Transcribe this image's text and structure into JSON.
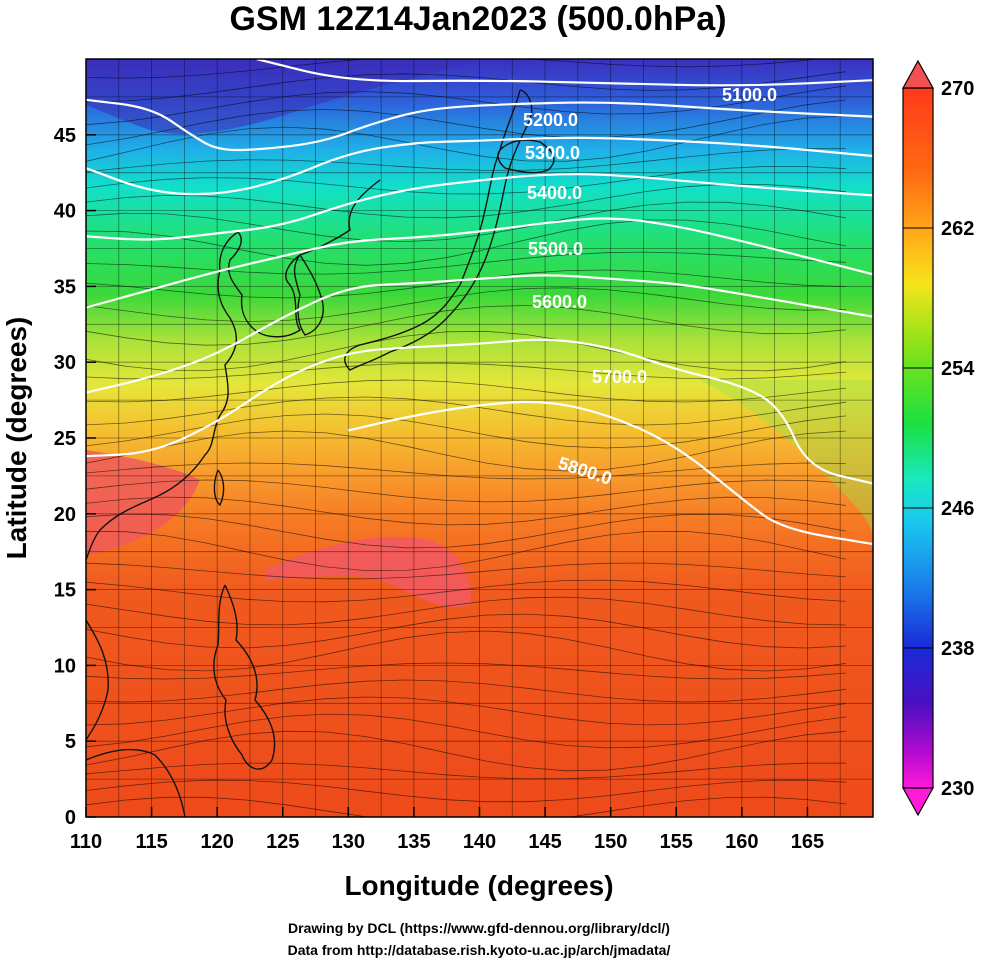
{
  "title": "GSM 12Z14Jan2023 (500.0hPa)",
  "xlabel": "Longitude (degrees)",
  "ylabel": "Latitude  (degrees)",
  "x_ticks": [
    "110",
    "115",
    "120",
    "125",
    "130",
    "135",
    "140",
    "145",
    "150",
    "155",
    "160",
    "165"
  ],
  "y_ticks": [
    "0",
    "5",
    "10",
    "15",
    "20",
    "25",
    "30",
    "35",
    "40",
    "45"
  ],
  "colorbar": {
    "ticks": [
      "270",
      "262",
      "254",
      "246",
      "238",
      "230"
    ],
    "min": 230,
    "max": 270
  },
  "contour_labels": [
    "5100.0",
    "5200.0",
    "5300.0",
    "5400.0",
    "5500.0",
    "5600.0",
    "5700.0",
    "5800.0"
  ],
  "credits": {
    "line1": "Drawing by DCL (https://www.gfd-dennou.org/library/dcl/)",
    "line2": "Data from http://database.rish.kyoto-u.ac.jp/arch/jmadata/"
  },
  "chart_data": {
    "type": "heatmap",
    "title": "GSM 12Z14Jan2023 (500.0hPa)",
    "xlabel": "Longitude (degrees)",
    "ylabel": "Latitude  (degrees)",
    "xlim": [
      110,
      170
    ],
    "ylim": [
      0,
      50
    ],
    "colorbar_range": [
      230,
      270
    ],
    "contours": [
      {
        "level": 5100.0,
        "points": [
          [
            123,
            50
          ],
          [
            130,
            48.5
          ],
          [
            140,
            48.6
          ],
          [
            150,
            48.4
          ],
          [
            160,
            48.2
          ],
          [
            170,
            48.6
          ]
        ]
      },
      {
        "level": 5200.0,
        "points": [
          [
            110,
            47.3
          ],
          [
            115,
            46.8
          ],
          [
            118,
            45
          ],
          [
            120,
            44
          ],
          [
            123,
            44
          ],
          [
            128,
            44.5
          ],
          [
            132,
            45.8
          ],
          [
            136,
            46.7
          ],
          [
            141,
            47
          ],
          [
            150,
            47.2
          ],
          [
            160,
            46.6
          ],
          [
            170,
            46.2
          ]
        ]
      },
      {
        "level": 5300.0,
        "points": [
          [
            110,
            42.8
          ],
          [
            115,
            41.2
          ],
          [
            120,
            41
          ],
          [
            125,
            42
          ],
          [
            130,
            43.8
          ],
          [
            135,
            44.5
          ],
          [
            140,
            44.6
          ],
          [
            145,
            44.8
          ],
          [
            150,
            44.8
          ],
          [
            160,
            44.4
          ],
          [
            170,
            43.6
          ]
        ]
      },
      {
        "level": 5400.0,
        "points": [
          [
            110,
            38.3
          ],
          [
            115,
            38
          ],
          [
            120,
            38.5
          ],
          [
            125,
            39
          ],
          [
            130,
            40.5
          ],
          [
            135,
            41.5
          ],
          [
            140,
            42
          ],
          [
            145,
            42.4
          ],
          [
            150,
            42.4
          ],
          [
            160,
            41.6
          ],
          [
            170,
            41
          ]
        ]
      },
      {
        "level": 5500.0,
        "points": [
          [
            110,
            33.6
          ],
          [
            115,
            34.8
          ],
          [
            120,
            36
          ],
          [
            125,
            37
          ],
          [
            130,
            38
          ],
          [
            135,
            38.2
          ],
          [
            140,
            38.6
          ],
          [
            145,
            39.2
          ],
          [
            150,
            39.6
          ],
          [
            155,
            39
          ],
          [
            160,
            38
          ],
          [
            170,
            35.8
          ]
        ]
      },
      {
        "level": 5600.0,
        "points": [
          [
            110,
            28
          ],
          [
            115,
            29
          ],
          [
            120,
            30.5
          ],
          [
            125,
            33
          ],
          [
            130,
            35
          ],
          [
            135,
            35.2
          ],
          [
            140,
            35.5
          ],
          [
            145,
            35.8
          ],
          [
            150,
            35.5
          ],
          [
            155,
            35.2
          ],
          [
            160,
            34.5
          ],
          [
            170,
            33
          ]
        ]
      },
      {
        "level": 5700.0,
        "points": [
          [
            110,
            23.8
          ],
          [
            115,
            24
          ],
          [
            120,
            26
          ],
          [
            125,
            29
          ],
          [
            130,
            30.7
          ],
          [
            135,
            31
          ],
          [
            140,
            31.2
          ],
          [
            145,
            31.6
          ],
          [
            150,
            31
          ],
          [
            155,
            29.5
          ],
          [
            160,
            28.5
          ],
          [
            163,
            27
          ],
          [
            165,
            23
          ],
          [
            170,
            22
          ]
        ]
      },
      {
        "level": 5800.0,
        "points": [
          [
            130,
            25.5
          ],
          [
            135,
            26.5
          ],
          [
            140,
            27.2
          ],
          [
            145,
            27.5
          ],
          [
            150,
            26.5
          ],
          [
            155,
            24.5
          ],
          [
            160,
            21
          ],
          [
            163,
            19
          ],
          [
            170,
            18
          ]
        ]
      }
    ]
  }
}
